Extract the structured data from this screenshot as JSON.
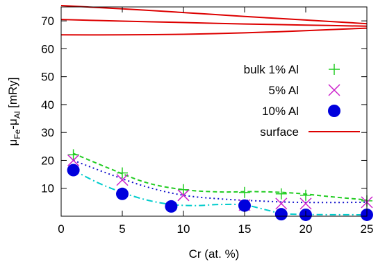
{
  "chart_data": {
    "type": "line",
    "xlabel": "Cr (at. %)",
    "ylabel_parts": [
      "μ",
      "Fe",
      "-μ",
      "Al",
      " [mRy]"
    ],
    "xlim": [
      0,
      25
    ],
    "ylim": [
      0,
      75
    ],
    "xticks": [
      0,
      5,
      10,
      15,
      20,
      25
    ],
    "yticks": [
      10,
      20,
      30,
      40,
      50,
      60,
      70
    ],
    "grid": false,
    "legend_position": "right",
    "series": [
      {
        "name": "bulk 1% Al",
        "marker": "plus",
        "color": "#22cc22",
        "x": [
          1,
          5,
          10,
          15,
          18,
          20,
          25
        ],
        "y": [
          22,
          15.5,
          9.5,
          8.5,
          8,
          7.5,
          5.5
        ],
        "fit_color": "#22cc22",
        "fit_dash": "6,4",
        "fit": [
          [
            1,
            22.5
          ],
          [
            4,
            17
          ],
          [
            7,
            12
          ],
          [
            10,
            9.5
          ],
          [
            13,
            8.7
          ],
          [
            16,
            8.8
          ],
          [
            19,
            8.3
          ],
          [
            22,
            7
          ],
          [
            25,
            5.8
          ]
        ]
      },
      {
        "name": "5% Al",
        "marker": "x",
        "color": "#cc22cc",
        "x": [
          1,
          5,
          10,
          15,
          18,
          20,
          25
        ],
        "y": [
          20,
          13,
          7.5,
          4,
          4.5,
          4.5,
          5
        ],
        "fit_color": "#1111cc",
        "fit_dash": "2,4",
        "fit": [
          [
            1,
            20
          ],
          [
            4,
            15
          ],
          [
            7,
            10.5
          ],
          [
            10,
            7.5
          ],
          [
            13,
            6.2
          ],
          [
            16,
            5.5
          ],
          [
            19,
            5
          ],
          [
            22,
            4.9
          ],
          [
            25,
            5
          ]
        ]
      },
      {
        "name": "10% Al",
        "marker": "circle",
        "color": "#0000dd",
        "x": [
          1,
          5,
          9,
          15,
          18,
          20,
          25
        ],
        "y": [
          16.5,
          8,
          3.5,
          3.8,
          0.7,
          0.5,
          0.5
        ],
        "fit_color": "#00cccc",
        "fit_dash": "9,4,2,4",
        "fit": [
          [
            1,
            16.5
          ],
          [
            3,
            12
          ],
          [
            5,
            8.5
          ],
          [
            7,
            5.8
          ],
          [
            9,
            4.2
          ],
          [
            11,
            3.8
          ],
          [
            13,
            4.2
          ],
          [
            15,
            4
          ],
          [
            17,
            2
          ],
          [
            18,
            1
          ],
          [
            20,
            0.6
          ],
          [
            25,
            0.5
          ]
        ]
      },
      {
        "name": "surface",
        "marker": "line",
        "color": "#dd0000",
        "curves": [
          [
            [
              0,
              75.5
            ],
            [
              5,
              74.3
            ],
            [
              10,
              73.0
            ],
            [
              15,
              71.6
            ],
            [
              20,
              70.3
            ],
            [
              25,
              69.0
            ]
          ],
          [
            [
              0,
              70.5
            ],
            [
              5,
              69.9
            ],
            [
              10,
              69.4
            ],
            [
              15,
              68.9
            ],
            [
              20,
              68.5
            ],
            [
              25,
              68.1
            ]
          ],
          [
            [
              0,
              65.0
            ],
            [
              5,
              65.0
            ],
            [
              10,
              65.2
            ],
            [
              15,
              65.7
            ],
            [
              20,
              66.5
            ],
            [
              25,
              67.4
            ]
          ]
        ]
      }
    ]
  }
}
